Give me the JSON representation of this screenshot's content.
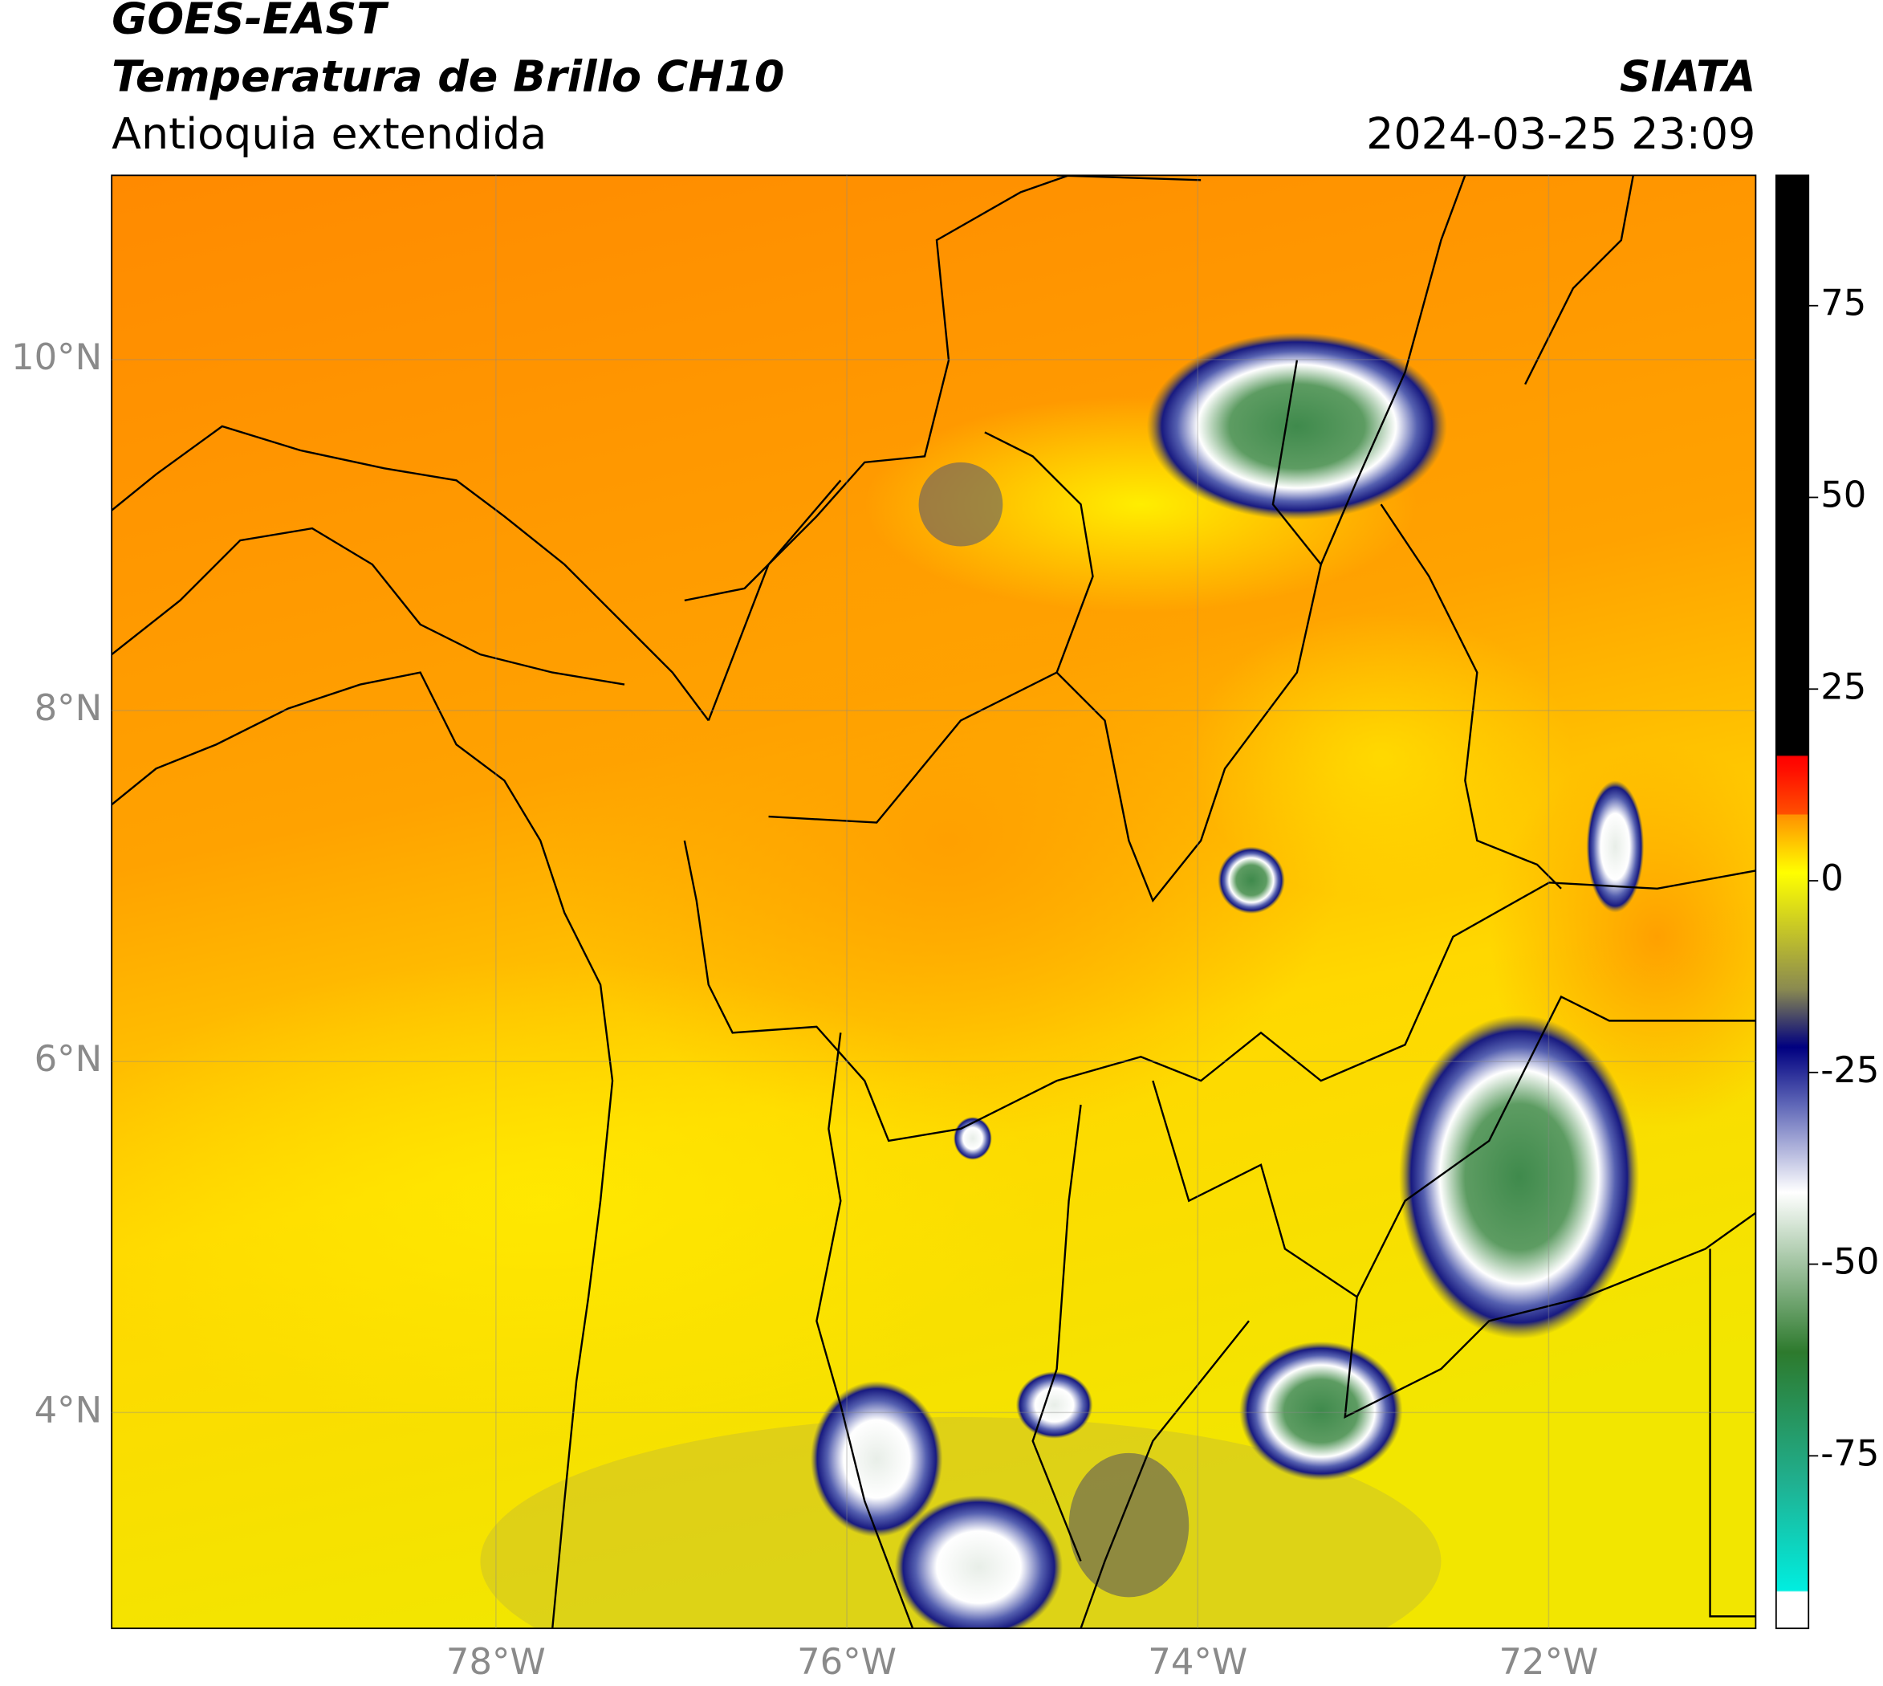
{
  "header": {
    "satellite": "GOES-EAST",
    "product": "Temperatura de Brillo CH10",
    "region": "Antioquia extendida",
    "agency": "SIATA",
    "datetime": "2024-03-25 23:09"
  },
  "map": {
    "xlim": [
      -80.19,
      -70.82
    ],
    "ylim": [
      2.77,
      11.05
    ],
    "xticks": [
      {
        "value": -78,
        "label": "78°W"
      },
      {
        "value": -76,
        "label": "76°W"
      },
      {
        "value": -74,
        "label": "74°W"
      },
      {
        "value": -72,
        "label": "72°W"
      }
    ],
    "yticks": [
      {
        "value": 10,
        "label": "10°N"
      },
      {
        "value": 8,
        "label": "8°N"
      },
      {
        "value": 6,
        "label": "6°N"
      },
      {
        "value": 4,
        "label": "4°N"
      }
    ]
  },
  "colorbar": {
    "lim": [
      -97.5,
      92
    ],
    "ticks": [
      75,
      50,
      25,
      0,
      -25,
      -50,
      -75
    ]
  }
}
